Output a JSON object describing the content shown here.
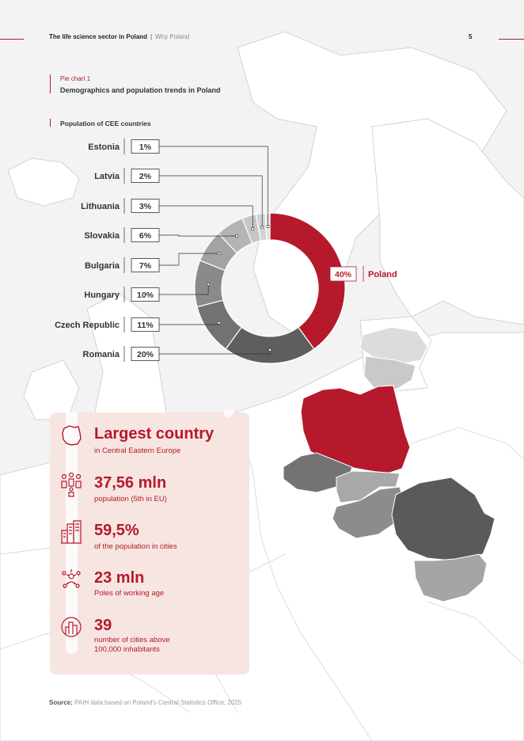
{
  "header": {
    "title": "The life science sector in Poland",
    "separator": "|",
    "section": "Why Poland",
    "page_number": "5"
  },
  "chart_label": "Pie chart 1",
  "chart_title": "Demographics and population trends in Poland",
  "subsection_title": "Population of CEE countries",
  "colors": {
    "accent": "#b5192b",
    "poland": "#b5192b",
    "dark": "#555555",
    "mid": "#8c8c8c",
    "light": "#bdbdbd",
    "lightest": "#d6d6d6",
    "card_bg": "#f7e5e1"
  },
  "chart_data": {
    "type": "pie",
    "subtitle": "Population of CEE countries",
    "donut": true,
    "slices": [
      {
        "label": "Poland",
        "value": 40,
        "display": "40%",
        "color": "#b5192b"
      },
      {
        "label": "Romania",
        "value": 20,
        "display": "20%",
        "color": "#5e5e5e"
      },
      {
        "label": "Czech Republic",
        "value": 11,
        "display": "11%",
        "color": "#727272"
      },
      {
        "label": "Hungary",
        "value": 10,
        "display": "10%",
        "color": "#8a8a8a"
      },
      {
        "label": "Bulgaria",
        "value": 7,
        "display": "7%",
        "color": "#a3a3a3"
      },
      {
        "label": "Slovakia",
        "value": 6,
        "display": "6%",
        "color": "#b4b4b4"
      },
      {
        "label": "Lithuania",
        "value": 3,
        "display": "3%",
        "color": "#c6c6c6"
      },
      {
        "label": "Latvia",
        "value": 2,
        "display": "2%",
        "color": "#d4d4d4"
      },
      {
        "label": "Estonia",
        "value": 1,
        "display": "1%",
        "color": "#e0e0e0"
      }
    ]
  },
  "stats": [
    {
      "icon": "poland-map-icon",
      "big": "Largest country",
      "small": [
        "in Central Eastern Europe"
      ]
    },
    {
      "icon": "people-icon",
      "big": "37,56 mln",
      "small": [
        "population (5th in EU)"
      ]
    },
    {
      "icon": "city-buildings-icon",
      "big": "59,5%",
      "small": [
        "of the population in cities"
      ]
    },
    {
      "icon": "working-people-icon",
      "big": "23 mln",
      "small": [
        "Poles of working age"
      ]
    },
    {
      "icon": "city-circle-icon",
      "big": "39",
      "small": [
        "number of cities above",
        "100,000 inhabitants"
      ]
    }
  ],
  "source": {
    "label": "Source:",
    "text": "PAIH data based on Poland's Central Statistics Office, 2025"
  }
}
